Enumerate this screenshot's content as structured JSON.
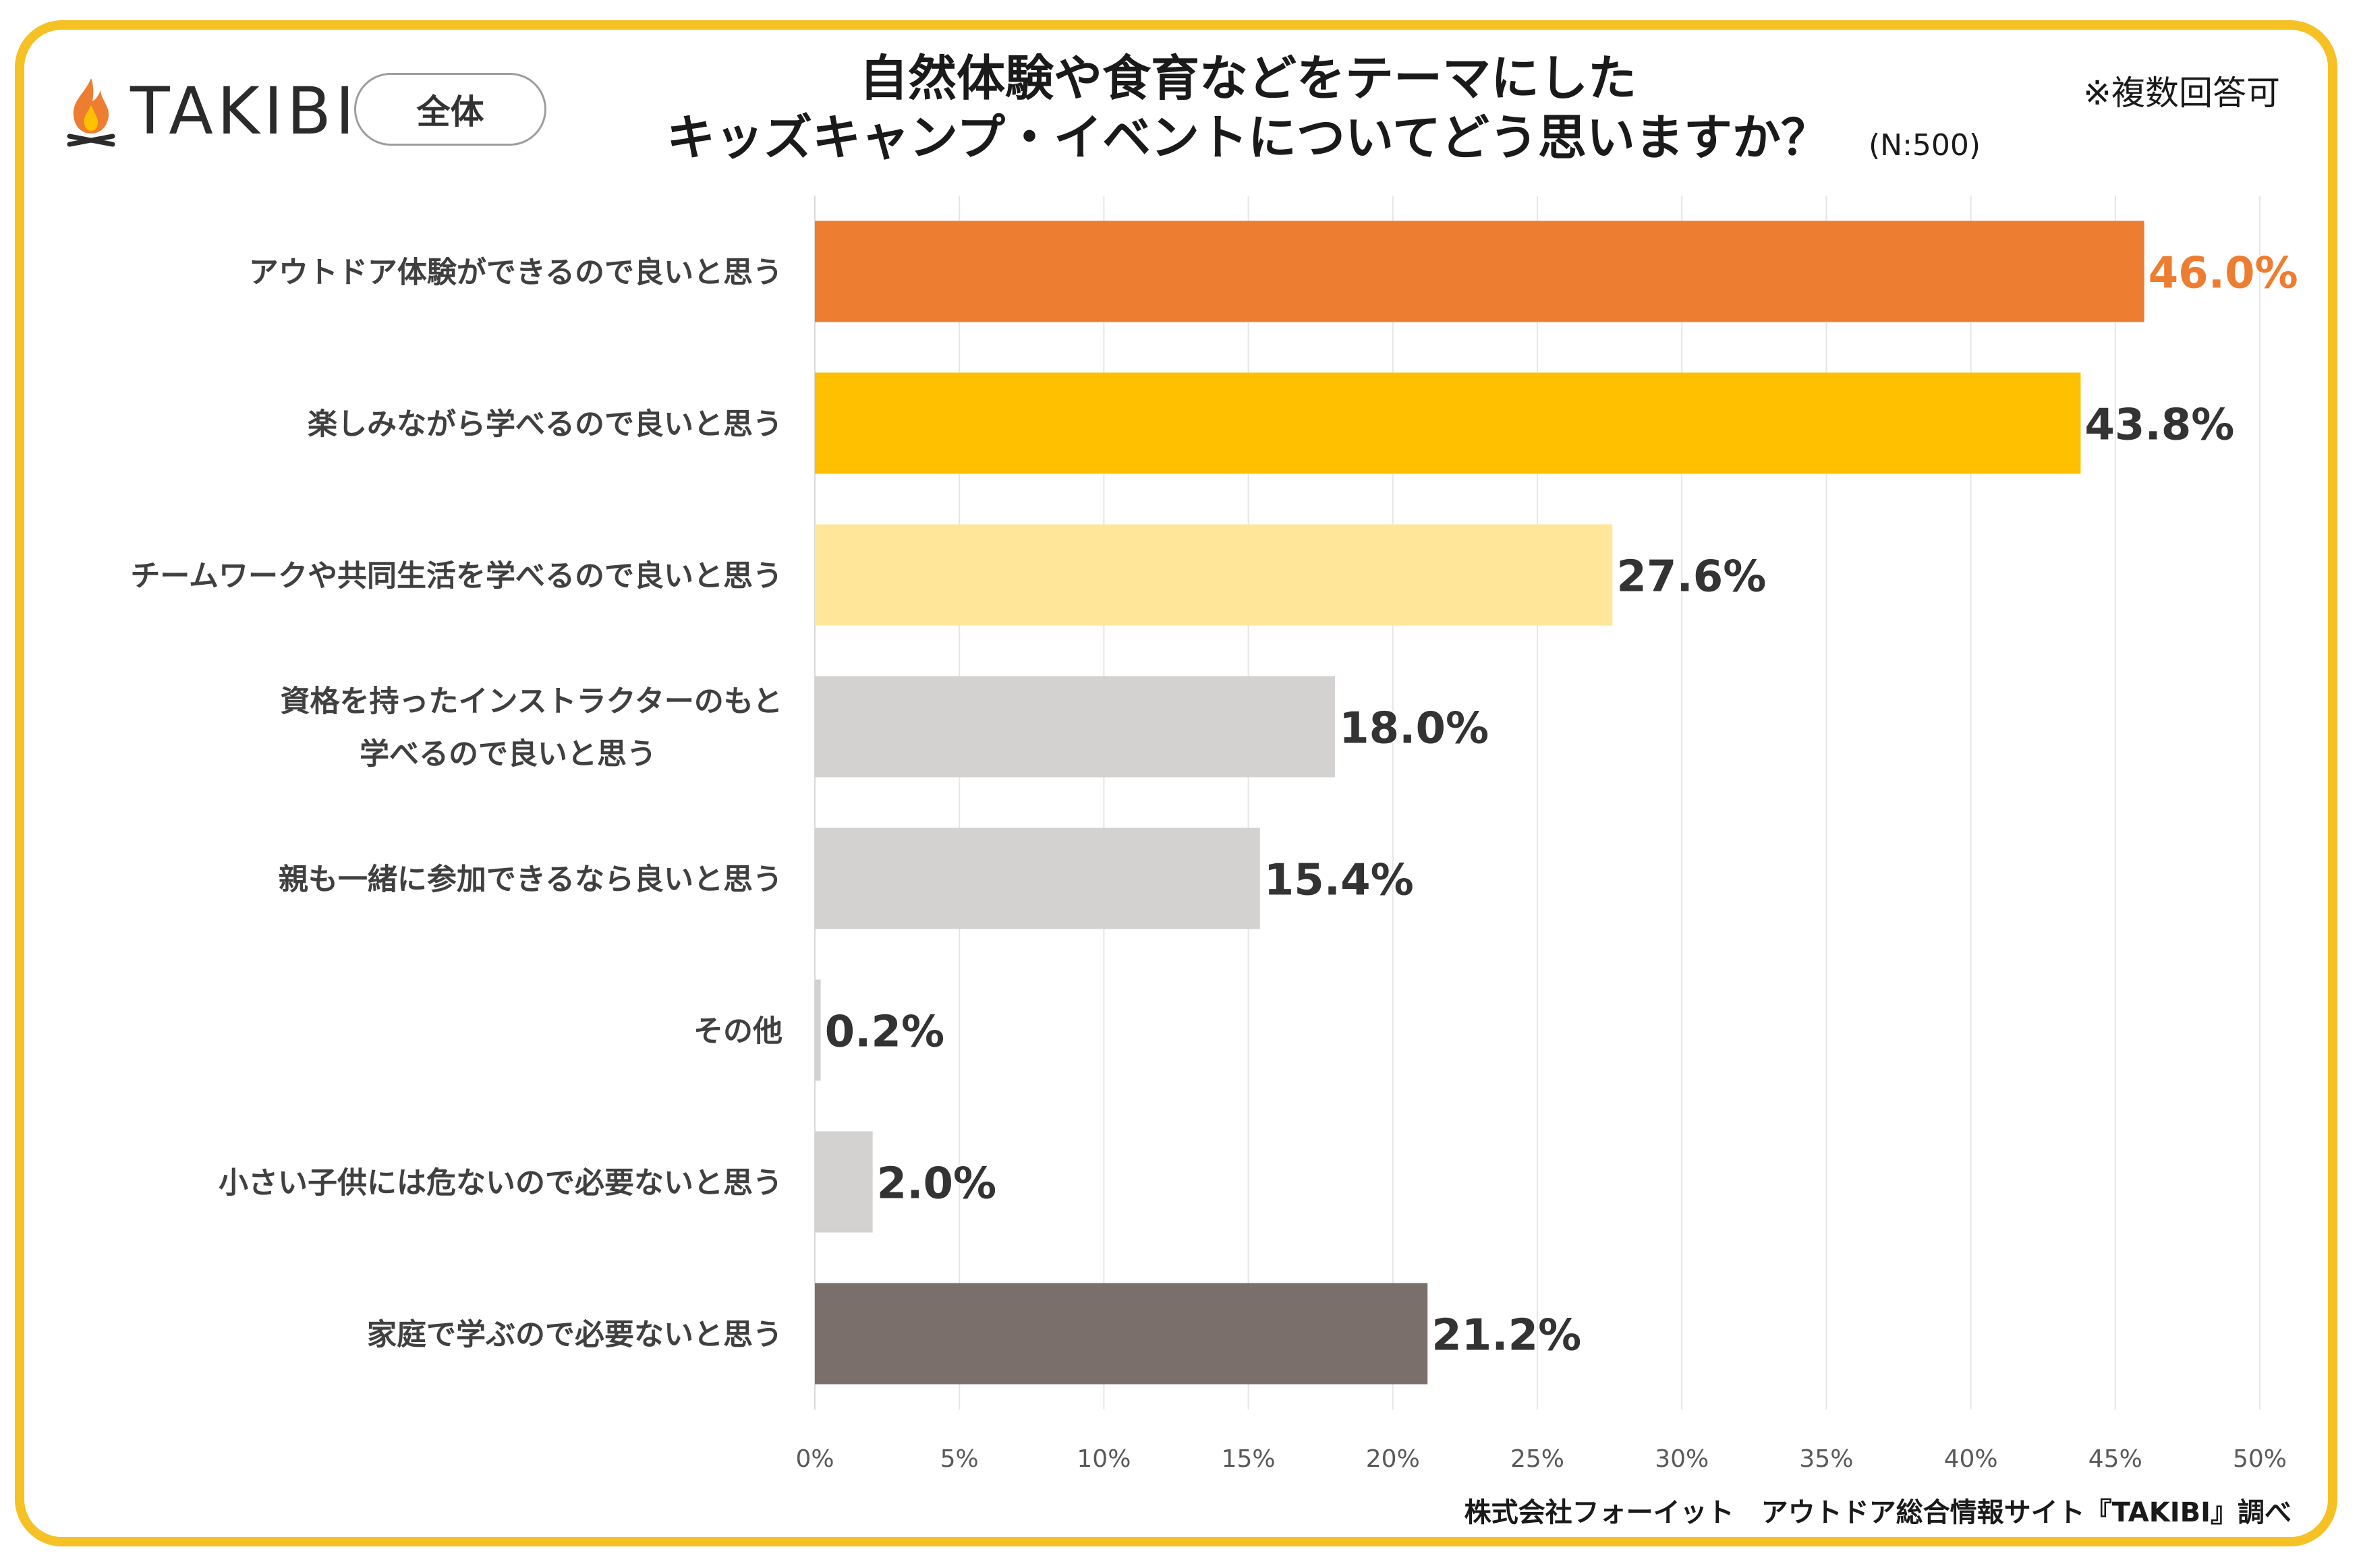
{
  "header": {
    "logo_text": "TAKIBI",
    "logo_icon": "campfire-icon",
    "segment_label": "全体",
    "title_line1": "自然体験や食育などをテーマにした",
    "title_line2": "キッズキャンプ・イベントについてどう思いますか？",
    "sample_size": "(N:500)",
    "note": "※複数回答可"
  },
  "footer": {
    "source": "株式会社フォーイット　アウトドア総合情報サイト『TAKIBI』調べ"
  },
  "chart_data": {
    "type": "bar",
    "orientation": "horizontal",
    "categories": [
      [
        "アウトドア体験ができるので良いと思う"
      ],
      [
        "楽しみながら学べるので良いと思う"
      ],
      [
        "チームワークや共同生活を学べるので良いと思う"
      ],
      [
        "資格を持ったインストラクターのもと",
        "学べるので良いと思う"
      ],
      [
        "親も一緒に参加できるなら良いと思う"
      ],
      [
        "その他"
      ],
      [
        "小さい子供には危ないので必要ないと思う"
      ],
      [
        "家庭で学ぶので必要ないと思う"
      ]
    ],
    "values": [
      46.0,
      43.8,
      27.6,
      18.0,
      15.4,
      0.2,
      2.0,
      21.2
    ],
    "value_labels": [
      "46.0%",
      "43.8%",
      "27.6%",
      "18.0%",
      "15.4%",
      "0.2%",
      "2.0%",
      "21.2%"
    ],
    "colors": [
      "#ed7d31",
      "#ffc000",
      "#ffe699",
      "#d4d1d1",
      "#d4d1d1",
      "#d4d1d1",
      "#d4d1d1",
      "#7a6f6b"
    ],
    "label_colors": [
      "#ed7d31",
      "#333333",
      "#333333",
      "#333333",
      "#333333",
      "#333333",
      "#333333",
      "#333333"
    ],
    "xlim": [
      0,
      50
    ],
    "x_ticks": [
      0,
      5,
      10,
      15,
      20,
      25,
      30,
      35,
      40,
      45,
      50
    ],
    "x_tick_labels": [
      "0%",
      "5%",
      "10%",
      "15%",
      "20%",
      "25%",
      "30%",
      "35%",
      "40%",
      "45%",
      "50%"
    ],
    "grid": true,
    "legend": "none"
  }
}
